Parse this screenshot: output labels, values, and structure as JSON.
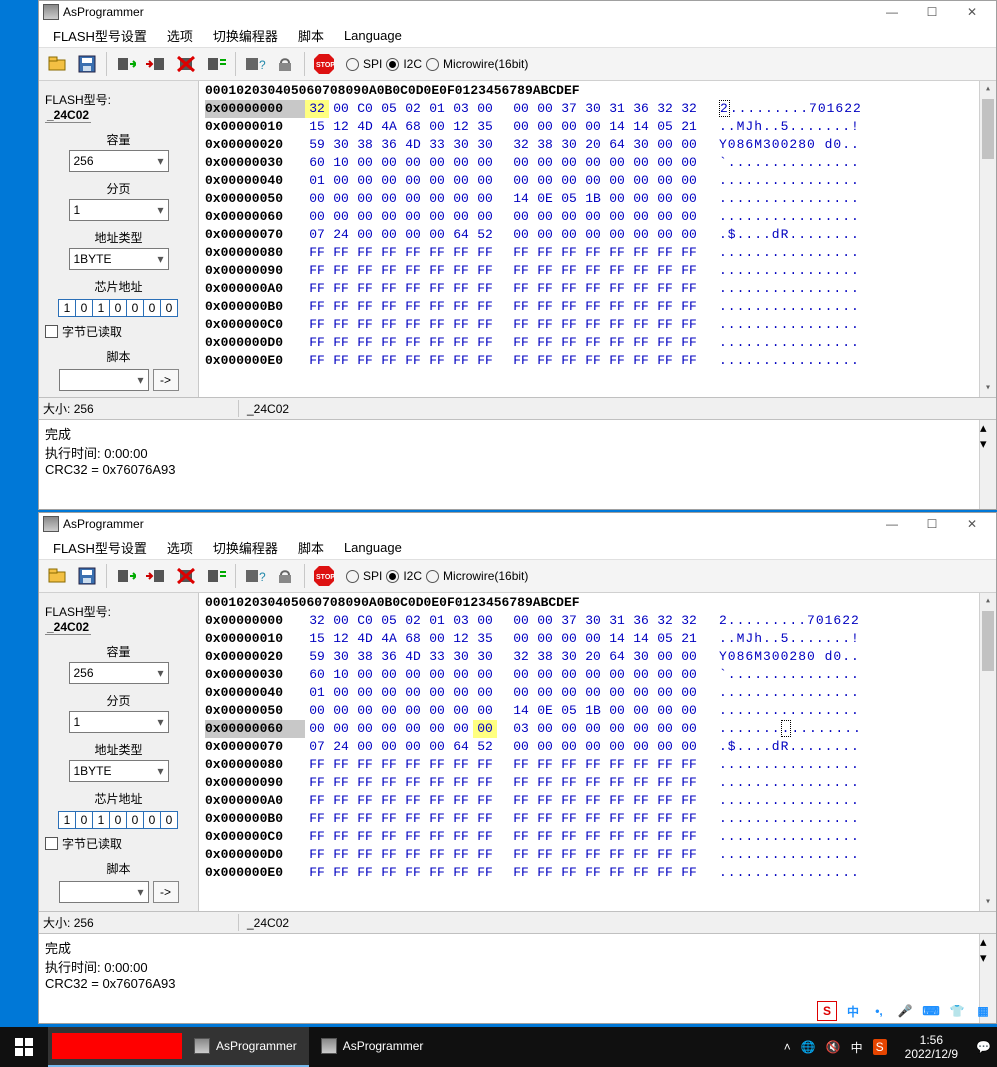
{
  "app": {
    "title": "AsProgrammer"
  },
  "menus": [
    "FLASH型号设置",
    "选项",
    "切换编程器",
    "脚本",
    "Language"
  ],
  "radios": {
    "spi": "SPI",
    "i2c": "I2C",
    "microwire": "Microwire(16bit)",
    "selected": "i2c"
  },
  "left": {
    "flash_label": "FLASH型号:",
    "flash_value": "_24C02",
    "capacity_label": "容量",
    "capacity": "256",
    "page_label": "分页",
    "page": "1",
    "addrtype_label": "地址类型",
    "addrtype": "1BYTE",
    "chipaddr_label": "芯片地址",
    "chipaddr": [
      "1",
      "0",
      "1",
      "0",
      "0",
      "0",
      "0"
    ],
    "readbytes_label": "字节已读取",
    "script_label": "脚本",
    "go": "->"
  },
  "hex": {
    "header_cols": "00 01 02 03 04 05 06 07  08 09 0A 0B 0C 0D 0E 0F",
    "ascii_header": "0123456789ABCDEF",
    "rows": [
      {
        "a": "0x00000000",
        "b": [
          "32",
          "00",
          "C0",
          "05",
          "02",
          "01",
          "03",
          "00",
          "00",
          "00",
          "37",
          "30",
          "31",
          "36",
          "32",
          "32"
        ],
        "t": "2.........701622"
      },
      {
        "a": "0x00000010",
        "b": [
          "15",
          "12",
          "4D",
          "4A",
          "68",
          "00",
          "12",
          "35",
          "00",
          "00",
          "00",
          "00",
          "14",
          "14",
          "05",
          "21"
        ],
        "t": "..MJh..5.......!"
      },
      {
        "a": "0x00000020",
        "b": [
          "59",
          "30",
          "38",
          "36",
          "4D",
          "33",
          "30",
          "30",
          "32",
          "38",
          "30",
          "20",
          "64",
          "30",
          "00",
          "00"
        ],
        "t": "Y086M300280 d0.."
      },
      {
        "a": "0x00000030",
        "b": [
          "60",
          "10",
          "00",
          "00",
          "00",
          "00",
          "00",
          "00",
          "00",
          "00",
          "00",
          "00",
          "00",
          "00",
          "00",
          "00"
        ],
        "t": "`..............."
      },
      {
        "a": "0x00000040",
        "b": [
          "01",
          "00",
          "00",
          "00",
          "00",
          "00",
          "00",
          "00",
          "00",
          "00",
          "00",
          "00",
          "00",
          "00",
          "00",
          "00"
        ],
        "t": "................"
      },
      {
        "a": "0x00000050",
        "b": [
          "00",
          "00",
          "00",
          "00",
          "00",
          "00",
          "00",
          "00",
          "14",
          "0E",
          "05",
          "1B",
          "00",
          "00",
          "00",
          "00"
        ],
        "t": "................"
      },
      {
        "a": "0x00000060",
        "b": [
          "00",
          "00",
          "00",
          "00",
          "00",
          "00",
          "00",
          "00",
          "00",
          "00",
          "00",
          "00",
          "00",
          "00",
          "00",
          "00"
        ],
        "t": "................"
      },
      {
        "a": "0x00000070",
        "b": [
          "07",
          "24",
          "00",
          "00",
          "00",
          "00",
          "64",
          "52",
          "00",
          "00",
          "00",
          "00",
          "00",
          "00",
          "00",
          "00"
        ],
        "t": ".$....dR........"
      },
      {
        "a": "0x00000080",
        "b": [
          "FF",
          "FF",
          "FF",
          "FF",
          "FF",
          "FF",
          "FF",
          "FF",
          "FF",
          "FF",
          "FF",
          "FF",
          "FF",
          "FF",
          "FF",
          "FF"
        ],
        "t": "................"
      },
      {
        "a": "0x00000090",
        "b": [
          "FF",
          "FF",
          "FF",
          "FF",
          "FF",
          "FF",
          "FF",
          "FF",
          "FF",
          "FF",
          "FF",
          "FF",
          "FF",
          "FF",
          "FF",
          "FF"
        ],
        "t": "................"
      },
      {
        "a": "0x000000A0",
        "b": [
          "FF",
          "FF",
          "FF",
          "FF",
          "FF",
          "FF",
          "FF",
          "FF",
          "FF",
          "FF",
          "FF",
          "FF",
          "FF",
          "FF",
          "FF",
          "FF"
        ],
        "t": "................"
      },
      {
        "a": "0x000000B0",
        "b": [
          "FF",
          "FF",
          "FF",
          "FF",
          "FF",
          "FF",
          "FF",
          "FF",
          "FF",
          "FF",
          "FF",
          "FF",
          "FF",
          "FF",
          "FF",
          "FF"
        ],
        "t": "................"
      },
      {
        "a": "0x000000C0",
        "b": [
          "FF",
          "FF",
          "FF",
          "FF",
          "FF",
          "FF",
          "FF",
          "FF",
          "FF",
          "FF",
          "FF",
          "FF",
          "FF",
          "FF",
          "FF",
          "FF"
        ],
        "t": "................"
      },
      {
        "a": "0x000000D0",
        "b": [
          "FF",
          "FF",
          "FF",
          "FF",
          "FF",
          "FF",
          "FF",
          "FF",
          "FF",
          "FF",
          "FF",
          "FF",
          "FF",
          "FF",
          "FF",
          "FF"
        ],
        "t": "................"
      },
      {
        "a": "0x000000E0",
        "b": [
          "FF",
          "FF",
          "FF",
          "FF",
          "FF",
          "FF",
          "FF",
          "FF",
          "FF",
          "FF",
          "FF",
          "FF",
          "FF",
          "FF",
          "FF",
          "FF"
        ],
        "t": "................"
      }
    ],
    "win1_sel_row": 0,
    "win1_sel_col": 0,
    "win2_sel_row": 6,
    "win2_sel_col": 7,
    "win2_rows": [
      {
        "a": "0x00000000",
        "b": [
          "32",
          "00",
          "C0",
          "05",
          "02",
          "01",
          "03",
          "00",
          "00",
          "00",
          "37",
          "30",
          "31",
          "36",
          "32",
          "32"
        ],
        "t": "2.........701622"
      },
      {
        "a": "0x00000010",
        "b": [
          "15",
          "12",
          "4D",
          "4A",
          "68",
          "00",
          "12",
          "35",
          "00",
          "00",
          "00",
          "00",
          "14",
          "14",
          "05",
          "21"
        ],
        "t": "..MJh..5.......!"
      },
      {
        "a": "0x00000020",
        "b": [
          "59",
          "30",
          "38",
          "36",
          "4D",
          "33",
          "30",
          "30",
          "32",
          "38",
          "30",
          "20",
          "64",
          "30",
          "00",
          "00"
        ],
        "t": "Y086M300280 d0.."
      },
      {
        "a": "0x00000030",
        "b": [
          "60",
          "10",
          "00",
          "00",
          "00",
          "00",
          "00",
          "00",
          "00",
          "00",
          "00",
          "00",
          "00",
          "00",
          "00",
          "00"
        ],
        "t": "`..............."
      },
      {
        "a": "0x00000040",
        "b": [
          "01",
          "00",
          "00",
          "00",
          "00",
          "00",
          "00",
          "00",
          "00",
          "00",
          "00",
          "00",
          "00",
          "00",
          "00",
          "00"
        ],
        "t": "................"
      },
      {
        "a": "0x00000050",
        "b": [
          "00",
          "00",
          "00",
          "00",
          "00",
          "00",
          "00",
          "00",
          "14",
          "0E",
          "05",
          "1B",
          "00",
          "00",
          "00",
          "00"
        ],
        "t": "................"
      },
      {
        "a": "0x00000060",
        "b": [
          "00",
          "00",
          "00",
          "00",
          "00",
          "00",
          "00",
          "00",
          "03",
          "00",
          "00",
          "00",
          "00",
          "00",
          "00",
          "00"
        ],
        "t": "................"
      },
      {
        "a": "0x00000070",
        "b": [
          "07",
          "24",
          "00",
          "00",
          "00",
          "00",
          "64",
          "52",
          "00",
          "00",
          "00",
          "00",
          "00",
          "00",
          "00",
          "00"
        ],
        "t": ".$....dR........"
      },
      {
        "a": "0x00000080",
        "b": [
          "FF",
          "FF",
          "FF",
          "FF",
          "FF",
          "FF",
          "FF",
          "FF",
          "FF",
          "FF",
          "FF",
          "FF",
          "FF",
          "FF",
          "FF",
          "FF"
        ],
        "t": "................"
      },
      {
        "a": "0x00000090",
        "b": [
          "FF",
          "FF",
          "FF",
          "FF",
          "FF",
          "FF",
          "FF",
          "FF",
          "FF",
          "FF",
          "FF",
          "FF",
          "FF",
          "FF",
          "FF",
          "FF"
        ],
        "t": "................"
      },
      {
        "a": "0x000000A0",
        "b": [
          "FF",
          "FF",
          "FF",
          "FF",
          "FF",
          "FF",
          "FF",
          "FF",
          "FF",
          "FF",
          "FF",
          "FF",
          "FF",
          "FF",
          "FF",
          "FF"
        ],
        "t": "................"
      },
      {
        "a": "0x000000B0",
        "b": [
          "FF",
          "FF",
          "FF",
          "FF",
          "FF",
          "FF",
          "FF",
          "FF",
          "FF",
          "FF",
          "FF",
          "FF",
          "FF",
          "FF",
          "FF",
          "FF"
        ],
        "t": "................"
      },
      {
        "a": "0x000000C0",
        "b": [
          "FF",
          "FF",
          "FF",
          "FF",
          "FF",
          "FF",
          "FF",
          "FF",
          "FF",
          "FF",
          "FF",
          "FF",
          "FF",
          "FF",
          "FF",
          "FF"
        ],
        "t": "................"
      },
      {
        "a": "0x000000D0",
        "b": [
          "FF",
          "FF",
          "FF",
          "FF",
          "FF",
          "FF",
          "FF",
          "FF",
          "FF",
          "FF",
          "FF",
          "FF",
          "FF",
          "FF",
          "FF",
          "FF"
        ],
        "t": "................"
      },
      {
        "a": "0x000000E0",
        "b": [
          "FF",
          "FF",
          "FF",
          "FF",
          "FF",
          "FF",
          "FF",
          "FF",
          "FF",
          "FF",
          "FF",
          "FF",
          "FF",
          "FF",
          "FF",
          "FF"
        ],
        "t": "................"
      }
    ]
  },
  "status": {
    "size_label": "大小:",
    "size": "256",
    "chip": "_24C02"
  },
  "log": {
    "done": "完成",
    "time": "执行时间: 0:00:00",
    "crc": "CRC32 = 0x76076A93"
  },
  "taskbar": {
    "tasks": [
      "AsProgrammer",
      "AsProgrammer"
    ],
    "time": "1:56",
    "date": "2022/12/9",
    "ime": "中"
  },
  "colors": {
    "hex_blue": "#0000c0",
    "sel_gray": "#c8c8c8",
    "hl_yellow": "#ffff80",
    "desktop": "#0078d7",
    "taskbar": "#101010"
  }
}
